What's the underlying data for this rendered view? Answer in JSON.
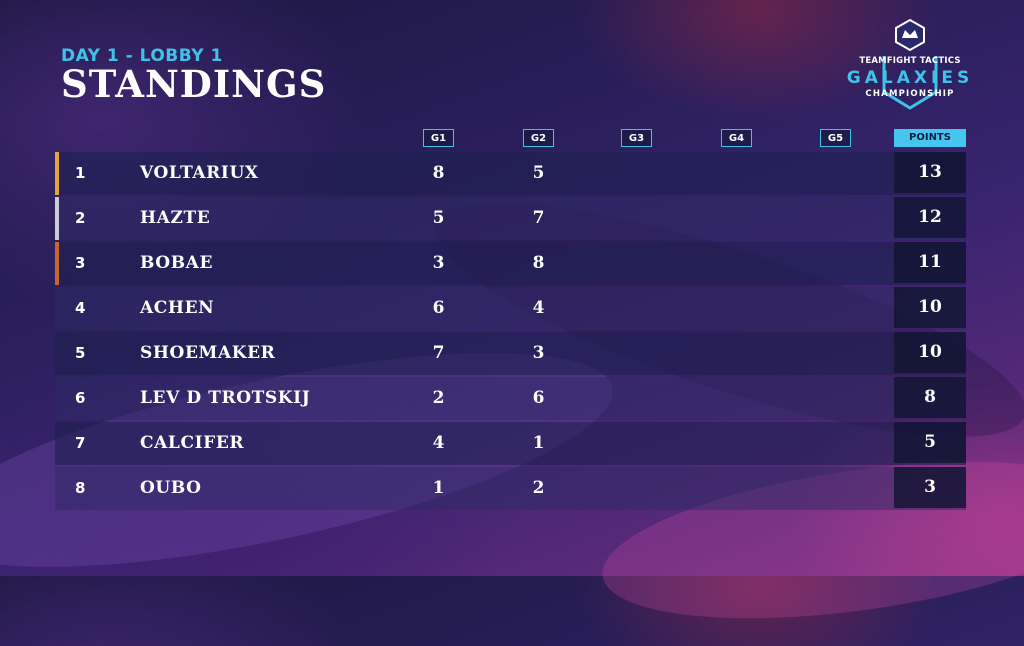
{
  "header": {
    "subtitle": "DAY 1 - LOBBY 1",
    "title": "STANDINGS"
  },
  "logo": {
    "line1": "TEAMFIGHT TACTICS",
    "line2": "GALAXIES",
    "line3": "CHAMPIONSHIP"
  },
  "columns": {
    "g1": "G1",
    "g2": "G2",
    "g3": "G3",
    "g4": "G4",
    "g5": "G5",
    "points": "POINTS"
  },
  "colors": {
    "accent": "#3fc3e8",
    "gold": "#e3a63a",
    "silver": "#c9cdd6",
    "bronze": "#c9662e"
  },
  "standings": [
    {
      "rank": "1",
      "name": "VOLTARIUX",
      "g1": "8",
      "g2": "5",
      "points": "13",
      "medal": "gold"
    },
    {
      "rank": "2",
      "name": "HAZTE",
      "g1": "5",
      "g2": "7",
      "points": "12",
      "medal": "silver"
    },
    {
      "rank": "3",
      "name": "BOBAE",
      "g1": "3",
      "g2": "8",
      "points": "11",
      "medal": "bronze"
    },
    {
      "rank": "4",
      "name": "ACHEN",
      "g1": "6",
      "g2": "4",
      "points": "10"
    },
    {
      "rank": "5",
      "name": "SHOEMAKER",
      "g1": "7",
      "g2": "3",
      "points": "10"
    },
    {
      "rank": "6",
      "name": "LEV D TROTSKIJ",
      "g1": "2",
      "g2": "6",
      "points": "8"
    },
    {
      "rank": "7",
      "name": "CALCIFER",
      "g1": "4",
      "g2": "1",
      "points": "5"
    },
    {
      "rank": "8",
      "name": "OUBO",
      "g1": "1",
      "g2": "2",
      "points": "3"
    }
  ]
}
